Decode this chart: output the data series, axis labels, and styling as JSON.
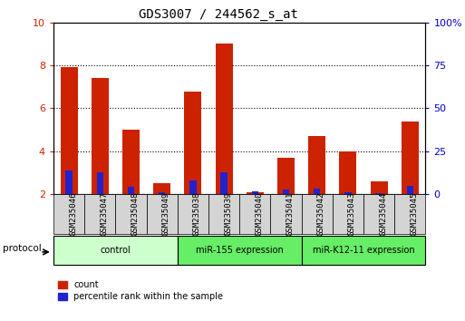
{
  "title": "GDS3007 / 244562_s_at",
  "samples": [
    "GSM235046",
    "GSM235047",
    "GSM235048",
    "GSM235049",
    "GSM235038",
    "GSM235039",
    "GSM235040",
    "GSM235041",
    "GSM235042",
    "GSM235043",
    "GSM235044",
    "GSM235045"
  ],
  "count_values": [
    7.9,
    7.4,
    5.0,
    2.5,
    6.8,
    9.0,
    2.1,
    3.7,
    4.7,
    4.0,
    2.6,
    5.4
  ],
  "percentile_values": [
    3.1,
    3.0,
    2.35,
    2.1,
    2.65,
    3.0,
    2.15,
    2.2,
    2.25,
    2.1,
    2.05,
    2.4
  ],
  "baseline": 2.0,
  "ylim_left": [
    2.0,
    10.0
  ],
  "ylim_right": [
    0,
    100
  ],
  "yticks_left": [
    2,
    4,
    6,
    8,
    10
  ],
  "yticks_right": [
    0,
    25,
    50,
    75,
    100
  ],
  "ytick_labels_right": [
    "0",
    "25",
    "50",
    "75",
    "100%"
  ],
  "bar_color_red": "#cc2200",
  "bar_color_blue": "#2222cc",
  "bar_width": 0.55,
  "blue_bar_width": 0.22,
  "group_colors": [
    "#ccffcc",
    "#66ee66",
    "#66ee66"
  ],
  "group_names": [
    "control",
    "miR-155 expression",
    "miR-K12-11 expression"
  ],
  "group_ranges": [
    [
      0,
      3
    ],
    [
      4,
      7
    ],
    [
      8,
      11
    ]
  ],
  "tick_label_color_left": "#cc2200",
  "tick_label_color_right": "#0000cc",
  "legend_count_label": "count",
  "legend_percentile_label": "percentile rank within the sample"
}
